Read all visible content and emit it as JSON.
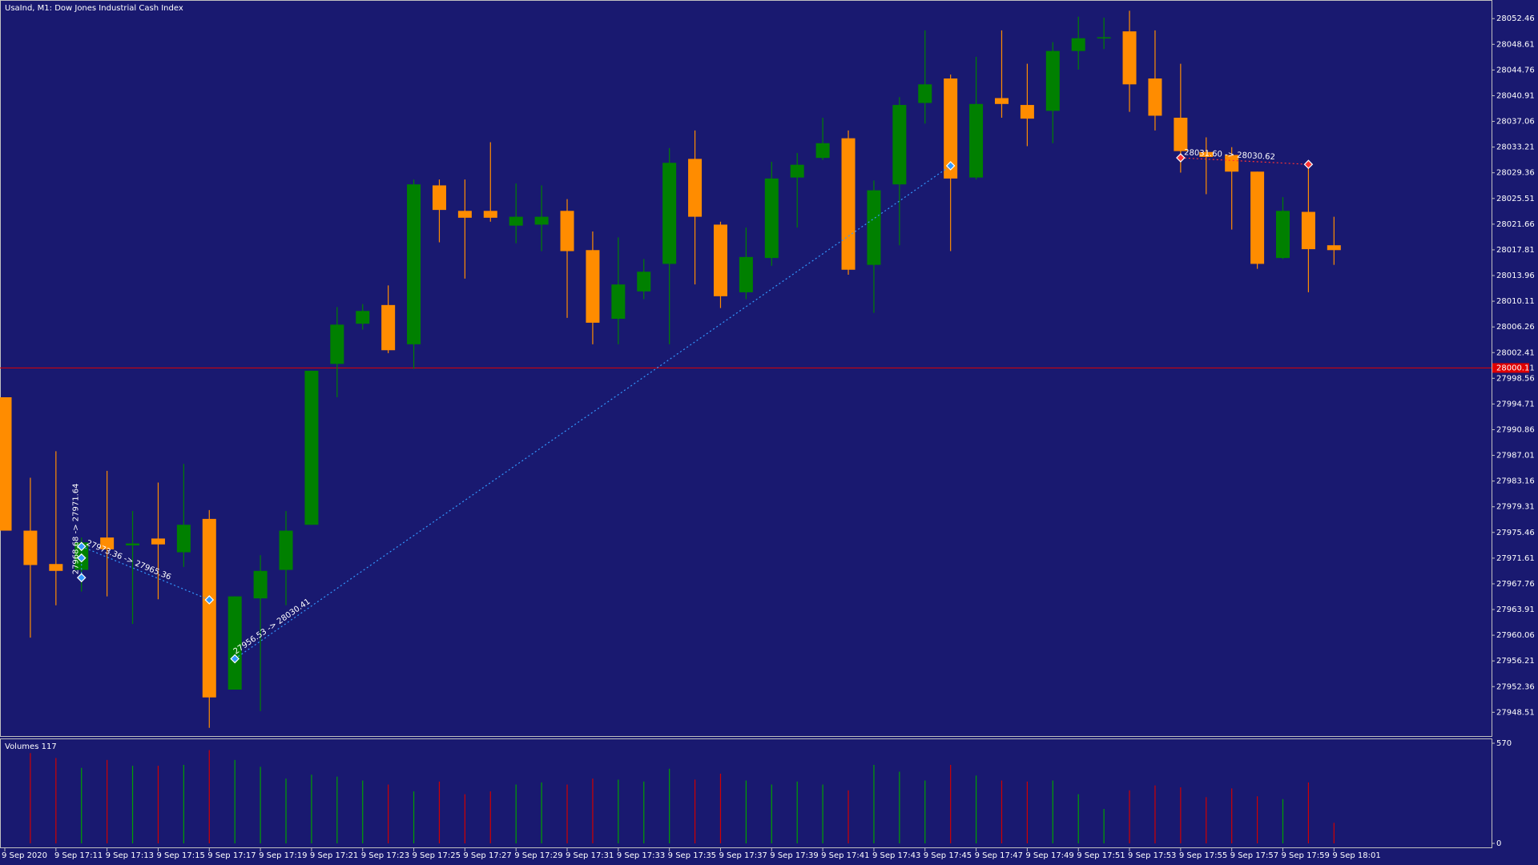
{
  "chart_data": {
    "type": "candlestick",
    "title": "UsaInd, M1:  Dow Jones Industrial Cash Index",
    "categories": [
      "9 Sep 2020",
      null,
      "9 Sep 17:11",
      null,
      "9 Sep 17:13",
      null,
      "9 Sep 17:15",
      null,
      "9 Sep 17:17",
      null,
      "9 Sep 17:19",
      null,
      "9 Sep 17:21",
      null,
      "9 Sep 17:23",
      null,
      "9 Sep 17:25",
      null,
      "9 Sep 17:27",
      null,
      "9 Sep 17:29",
      null,
      "9 Sep 17:31",
      null,
      "9 Sep 17:33",
      null,
      "9 Sep 17:35",
      null,
      "9 Sep 17:37",
      null,
      "9 Sep 17:39",
      null,
      "9 Sep 17:41",
      null,
      "9 Sep 17:43",
      null,
      "9 Sep 17:45",
      null,
      "9 Sep 17:47",
      null,
      "9 Sep 17:49",
      null,
      "9 Sep 17:51",
      null,
      "9 Sep 17:53",
      null,
      "9 Sep 17:55",
      null,
      "9 Sep 17:57",
      null,
      "9 Sep 17:59",
      null,
      "9 Sep 18:01"
    ],
    "open": [
      27995.72,
      27975.73,
      27970.73,
      27969.85,
      27974.7,
      27973.52,
      27974.55,
      27972.49,
      27977.49,
      27951.91,
      27965.58,
      27969.85,
      27976.61,
      28000.72,
      28006.74,
      28009.54,
      28003.66,
      28027.47,
      28023.65,
      28023.65,
      28021.44,
      28021.59,
      28023.65,
      28017.77,
      28007.48,
      28011.59,
      28015.71,
      28031.44,
      28021.59,
      28011.45,
      28016.59,
      28028.65,
      28031.59,
      28034.53,
      28015.56,
      28027.62,
      28039.82,
      28043.49,
      28028.65,
      28040.55,
      28039.52,
      28038.64,
      28047.61,
      28049.52,
      28050.55,
      28043.49,
      28037.61,
      28032.47,
      28032.03,
      28029.53,
      28016.59,
      28023.5,
      28018.5
    ],
    "high": [
      27995.72,
      27983.66,
      27987.63,
      27974.7,
      27984.69,
      27978.67,
      27982.93,
      27985.72,
      27978.81,
      27965.88,
      27972.05,
      27978.67,
      27999.69,
      28009.24,
      28009.68,
      28012.48,
      28028.35,
      28028.35,
      28028.35,
      28033.94,
      28027.76,
      28027.47,
      28025.41,
      28020.56,
      28019.68,
      28016.44,
      28033.06,
      28035.7,
      28022.03,
      28021.15,
      28031.0,
      28032.32,
      28037.61,
      28035.7,
      28028.2,
      28040.7,
      28050.7,
      28044.08,
      28046.73,
      28050.7,
      28045.7,
      28048.93,
      28052.75,
      28052.61,
      28053.64,
      28050.7,
      28045.7,
      28034.67,
      28033.2,
      28029.53,
      28025.71,
      28029.97,
      28022.77
    ],
    "low": [
      27975.73,
      27959.7,
      27964.55,
      27966.61,
      27965.88,
      27961.76,
      27965.44,
      27970.29,
      27946.18,
      27951.91,
      27948.68,
      27964.55,
      27976.61,
      27995.72,
      28005.86,
      28002.33,
      27999.98,
      28018.94,
      28013.5,
      28022.03,
      28018.8,
      28017.62,
      28007.62,
      28003.66,
      28003.66,
      28010.42,
      28003.66,
      28012.62,
      28009.09,
      28010.42,
      28015.42,
      28021.15,
      28031.29,
      28014.09,
      28008.36,
      28018.5,
      28036.73,
      28017.62,
      28028.35,
      28037.61,
      28033.35,
      28033.79,
      28044.82,
      28047.9,
      28038.49,
      28035.7,
      28029.38,
      28026.15,
      28020.85,
      28014.97,
      28016.44,
      28011.45,
      28015.56
    ],
    "close": [
      27975.73,
      27970.58,
      27969.7,
      27973.96,
      27972.93,
      27973.81,
      27973.67,
      27976.61,
      27950.74,
      27965.88,
      27969.7,
      27975.73,
      27999.69,
      28006.6,
      28008.65,
      28002.77,
      28027.62,
      28023.79,
      28022.62,
      28022.62,
      28022.77,
      28022.77,
      28017.62,
      28006.89,
      28012.62,
      28014.53,
      28030.85,
      28022.77,
      28010.86,
      28016.74,
      28028.5,
      28030.56,
      28033.79,
      28014.83,
      28026.73,
      28039.52,
      28042.61,
      28028.5,
      28039.67,
      28039.67,
      28037.47,
      28047.61,
      28049.52,
      28049.67,
      28042.61,
      28037.91,
      28032.61,
      28031.73,
      28029.53,
      28015.71,
      28023.65,
      28017.91,
      28017.77
    ],
    "up_color": "#008000",
    "down_color": "#ff8c00",
    "ylim": [
      27944.83,
      28055.25
    ],
    "yticks": [
      28052.46,
      28048.61,
      28044.76,
      28040.91,
      28037.06,
      28033.21,
      28029.36,
      28025.51,
      28021.66,
      28017.81,
      28013.96,
      28010.11,
      28006.26,
      28002.41,
      27998.56,
      27994.71,
      27990.86,
      27987.01,
      27983.16,
      27979.31,
      27975.46,
      27971.61,
      27967.76,
      27963.91,
      27960.06,
      27956.21,
      27952.36,
      27948.51
    ],
    "hline": 28000.11,
    "hline_color": "#e00000",
    "trades": [
      {
        "label": "27968.68 -> 27971.64",
        "open": 27968.68,
        "close": 27971.64,
        "color": "#3399ff"
      },
      {
        "label": "27973.36 -> 27965.36",
        "open": 27973.36,
        "close": 27965.36,
        "color": "#3399ff"
      },
      {
        "label": "27956.53 -> 28030.41",
        "open": 27956.53,
        "close": 28030.41,
        "color": "#3399ff"
      },
      {
        "label": "28031.60 -> 28030.62",
        "open": 28031.6,
        "close": 28030.62,
        "color": "#ff3333"
      }
    ],
    "volume": {
      "name": "Volumes",
      "values": [
        null,
        514,
        486,
        430,
        475,
        442,
        442,
        447,
        531,
        475,
        436,
        369,
        391,
        380,
        358,
        335,
        296,
        352,
        280,
        296,
        335,
        347,
        335,
        369,
        363,
        352,
        425,
        363,
        397,
        358,
        335,
        352,
        335,
        302,
        447,
        408,
        358,
        447,
        386,
        358,
        352,
        358,
        280,
        196,
        302,
        330,
        319,
        263,
        313,
        268,
        252,
        347,
        117
      ],
      "up_color": "#00a000",
      "down_color": "#d00000",
      "ylim": [
        0,
        570
      ],
      "yticks": [
        570,
        0
      ]
    }
  }
}
